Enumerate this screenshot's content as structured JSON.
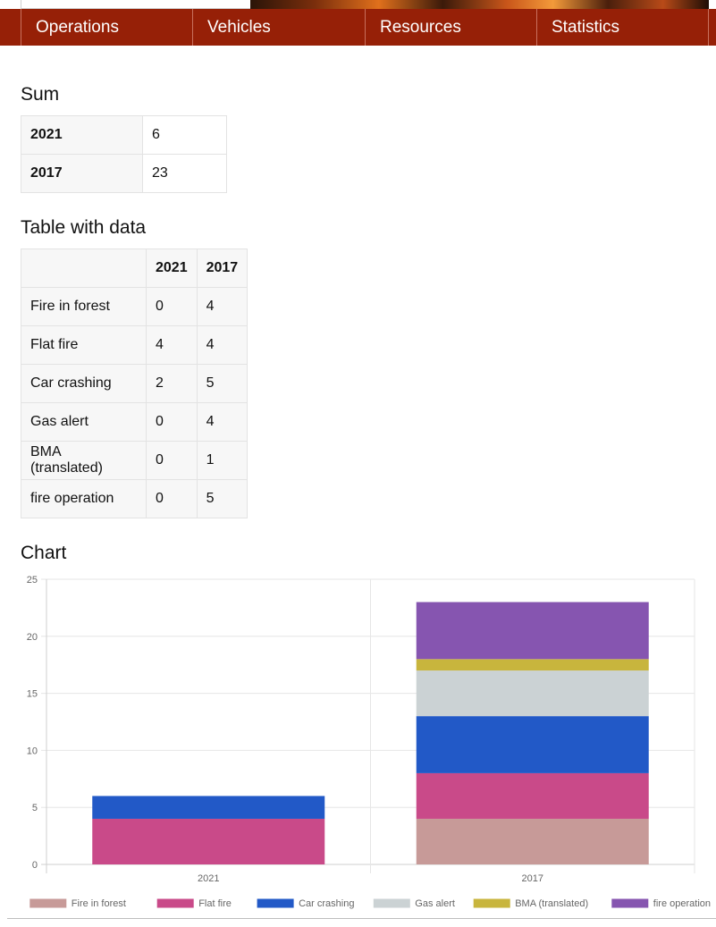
{
  "nav": {
    "items": [
      "Operations",
      "Vehicles",
      "Resources",
      "Statistics"
    ]
  },
  "sum": {
    "heading": "Sum",
    "rows": [
      {
        "year": "2021",
        "value": "6"
      },
      {
        "year": "2017",
        "value": "23"
      }
    ]
  },
  "table": {
    "heading": "Table with data",
    "columns": [
      "",
      "2021",
      "2017"
    ],
    "rows": [
      {
        "label": "Fire in forest",
        "v2021": "0",
        "v2017": "4"
      },
      {
        "label": "Flat fire",
        "v2021": "4",
        "v2017": "4"
      },
      {
        "label": "Car crashing",
        "v2021": "2",
        "v2017": "5"
      },
      {
        "label": "Gas alert",
        "v2021": "0",
        "v2017": "4"
      },
      {
        "label": "BMA (translated)",
        "v2021": "0",
        "v2017": "1"
      },
      {
        "label": "fire operation",
        "v2021": "0",
        "v2017": "5"
      }
    ]
  },
  "chart": {
    "heading": "Chart"
  },
  "chart_data": {
    "type": "bar",
    "stacked": true,
    "title": "",
    "xlabel": "",
    "ylabel": "",
    "categories": [
      "2021",
      "2017"
    ],
    "ylim": [
      0,
      25
    ],
    "yticks": [
      0,
      5,
      10,
      15,
      20,
      25
    ],
    "grid": true,
    "legend_position": "bottom",
    "series": [
      {
        "name": "Fire in forest",
        "color": "#c79a98",
        "values": [
          0,
          4
        ]
      },
      {
        "name": "Flat fire",
        "color": "#c94a89",
        "values": [
          4,
          4
        ]
      },
      {
        "name": "Car crashing",
        "color": "#2259c7",
        "values": [
          2,
          5
        ]
      },
      {
        "name": "Gas alert",
        "color": "#cbd2d4",
        "values": [
          0,
          4
        ]
      },
      {
        "name": "BMA (translated)",
        "color": "#c8b53d",
        "values": [
          0,
          1
        ]
      },
      {
        "name": "fire operation",
        "color": "#8655b0",
        "values": [
          0,
          5
        ]
      }
    ]
  }
}
